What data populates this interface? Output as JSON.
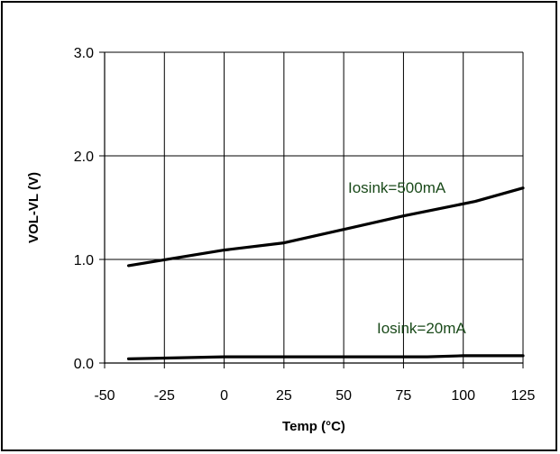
{
  "chart_data": {
    "type": "line",
    "title": "",
    "xlabel": "Temp (°C)",
    "ylabel": "VOL-VL (V)",
    "xlim": [
      -50,
      125
    ],
    "ylim": [
      0.0,
      3.0
    ],
    "x_ticks": [
      -50,
      -25,
      0,
      25,
      50,
      75,
      100,
      125
    ],
    "x_tick_labels": [
      "-50",
      "-25",
      "0",
      "25",
      "50",
      "75",
      "100",
      "125"
    ],
    "y_ticks": [
      0.0,
      1.0,
      2.0,
      3.0
    ],
    "y_tick_labels": [
      "0.0",
      "1.0",
      "2.0",
      "3.0"
    ],
    "grid": true,
    "series": [
      {
        "name": "Iosink=500mA",
        "color": "#000000",
        "x": [
          -40,
          0,
          25,
          50,
          75,
          105,
          125
        ],
        "y": [
          0.94,
          1.09,
          1.16,
          1.29,
          1.42,
          1.56,
          1.69
        ]
      },
      {
        "name": "Iosink=20mA",
        "color": "#000000",
        "x": [
          -40,
          0,
          25,
          50,
          85,
          100,
          125
        ],
        "y": [
          0.04,
          0.06,
          0.06,
          0.06,
          0.06,
          0.07,
          0.07
        ]
      }
    ]
  }
}
